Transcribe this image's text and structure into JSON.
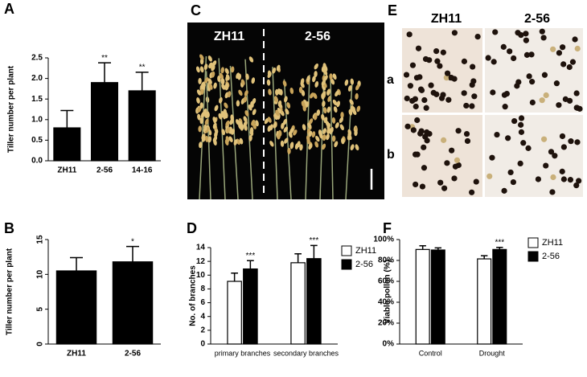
{
  "chart_data": [
    {
      "panel": "A",
      "type": "bar",
      "categories": [
        "ZH11",
        "2-56",
        "14-16"
      ],
      "values": [
        0.8,
        1.9,
        1.7
      ],
      "errors": [
        0.42,
        0.48,
        0.45
      ],
      "significance": [
        null,
        "**",
        "**"
      ],
      "color": "#000000",
      "ylabel": "Tiller number per plant",
      "ylim": [
        0,
        2.5
      ],
      "yticks": [
        {
          "value": 0,
          "label": "0.0"
        },
        0.5,
        {
          "value": 1,
          "label": "1.0"
        },
        1.5,
        {
          "value": 2,
          "label": "2.0"
        },
        2.5
      ]
    },
    {
      "panel": "B",
      "type": "bar",
      "categories": [
        "ZH11",
        "2-56"
      ],
      "values": [
        10.5,
        11.8
      ],
      "errors": [
        1.9,
        2.2
      ],
      "significance": [
        null,
        "*"
      ],
      "color": "#000000",
      "ylabel": "Tiller number per plant",
      "ylim": [
        0,
        15
      ],
      "yticks": [
        0,
        5,
        10,
        15
      ]
    },
    {
      "panel": "D",
      "type": "grouped_bar",
      "categories": [
        "primary branches",
        "secondary branches"
      ],
      "series": [
        {
          "name": "ZH11",
          "color": "#ffffff",
          "values": [
            9.1,
            11.8
          ],
          "errors": [
            1.2,
            1.3
          ],
          "significance": [
            null,
            null
          ]
        },
        {
          "name": "2-56",
          "color": "#000000",
          "values": [
            10.9,
            12.4
          ],
          "errors": [
            1.2,
            1.9
          ],
          "significance": [
            "***",
            "***"
          ]
        }
      ],
      "ylabel": "No. of branches",
      "ylim": [
        0,
        14
      ],
      "yticks": [
        0,
        2,
        4,
        6,
        8,
        10,
        12,
        14
      ]
    },
    {
      "panel": "F",
      "type": "grouped_bar",
      "categories": [
        "Control",
        "Drought"
      ],
      "series": [
        {
          "name": "ZH11",
          "color": "#ffffff",
          "values": [
            90.5,
            81.5
          ],
          "errors": [
            3.5,
            3
          ],
          "significance": [
            null,
            null
          ]
        },
        {
          "name": "2-56",
          "color": "#000000",
          "values": [
            90,
            90.5
          ],
          "errors": [
            2,
            2
          ],
          "significance": [
            null,
            "***"
          ]
        }
      ],
      "ylabel": "Viable pollen (%)",
      "ylim": [
        0,
        100
      ],
      "yticks": [
        {
          "value": 0,
          "label": "0%"
        },
        {
          "value": 20,
          "label": "20%"
        },
        {
          "value": 40,
          "label": "40%"
        },
        {
          "value": 60,
          "label": "60%"
        },
        {
          "value": 80,
          "label": "80%"
        },
        {
          "value": 100,
          "label": "100%"
        }
      ]
    }
  ],
  "photos": [
    {
      "panel": "C",
      "labels": [
        "ZH11",
        "2-56"
      ]
    },
    {
      "panel": "E",
      "columns": [
        "ZH11",
        "2-56"
      ],
      "rows": [
        "a",
        "b"
      ]
    }
  ]
}
